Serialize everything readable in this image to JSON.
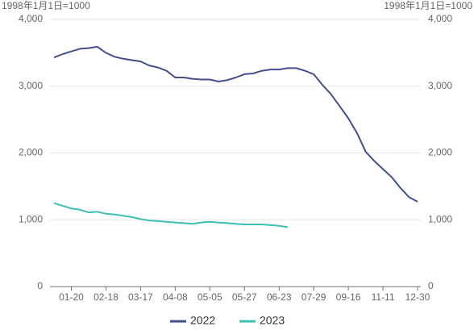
{
  "chart_data": {
    "type": "line",
    "y_label": "1998年1月1日=1000",
    "y2_label": "1998年1月1日=1000",
    "categories": [
      null,
      null,
      "01-20",
      null,
      null,
      null,
      "02-18",
      null,
      null,
      null,
      "03-17",
      null,
      null,
      null,
      "04-08",
      null,
      null,
      null,
      "05-05",
      null,
      null,
      null,
      "05-27",
      null,
      null,
      null,
      "06-23",
      null,
      null,
      null,
      "07-29",
      null,
      null,
      null,
      "09-16",
      null,
      null,
      null,
      "11-11",
      null,
      null,
      null,
      "12-30"
    ],
    "series": [
      {
        "name": "2022",
        "color": "#434f8e",
        "values": [
          3430,
          3480,
          3520,
          3560,
          3570,
          3590,
          3500,
          3440,
          3410,
          3390,
          3370,
          3310,
          3280,
          3230,
          3130,
          3130,
          3110,
          3100,
          3100,
          3070,
          3090,
          3130,
          3180,
          3190,
          3230,
          3250,
          3250,
          3270,
          3270,
          3230,
          3180,
          3020,
          2880,
          2700,
          2520,
          2300,
          2020,
          1880,
          1760,
          1640,
          1480,
          1340,
          1270
        ]
      },
      {
        "name": "2023",
        "color": "#3dbfb3",
        "values": [
          1250,
          1210,
          1170,
          1150,
          1110,
          1120,
          1090,
          1080,
          1060,
          1040,
          1010,
          990,
          980,
          970,
          960,
          950,
          940,
          960,
          970,
          960,
          950,
          940,
          930,
          930,
          930,
          920,
          910,
          890,
          null,
          null,
          null,
          null,
          null,
          null,
          null,
          null,
          null,
          null,
          null,
          null,
          null,
          null,
          null
        ]
      }
    ],
    "ylim": [
      0,
      4000
    ],
    "yticks": [
      0,
      {
        "value": 1000,
        "label": "1,000"
      },
      {
        "value": 2000,
        "label": "2,000"
      },
      {
        "value": 3000,
        "label": "3,000"
      },
      {
        "value": 4000,
        "label": "4,000"
      }
    ],
    "y2lim": [
      0,
      4000
    ],
    "y2ticks": [
      0,
      {
        "value": 1000,
        "label": "1,000"
      },
      {
        "value": 2000,
        "label": "2,000"
      },
      {
        "value": 3000,
        "label": "3,000"
      },
      {
        "value": 4000,
        "label": "4,000"
      }
    ],
    "grid": true,
    "legend": "bottom"
  }
}
